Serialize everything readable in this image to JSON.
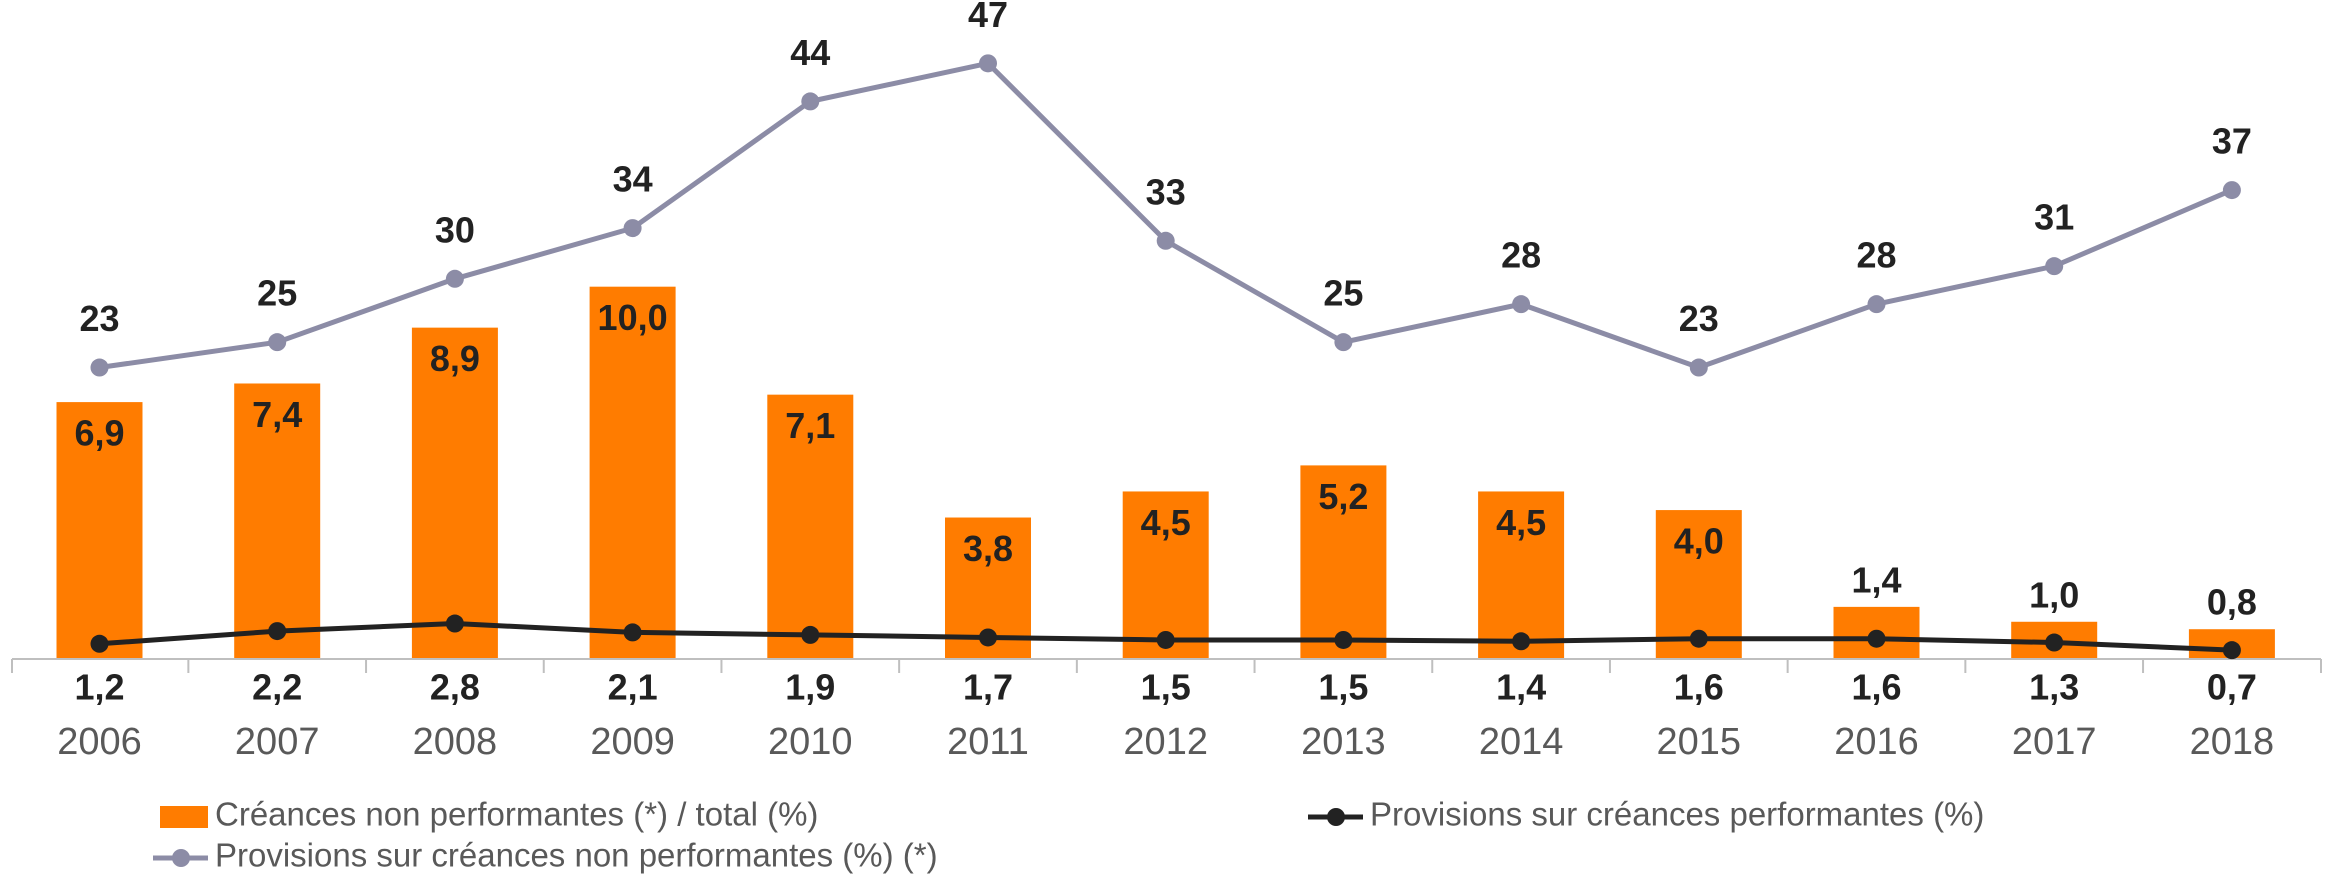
{
  "chart_data": {
    "type": "combo",
    "categories": [
      "2006",
      "2007",
      "2008",
      "2009",
      "2010",
      "2011",
      "2012",
      "2013",
      "2014",
      "2015",
      "2016",
      "2017",
      "2018"
    ],
    "ylim": [
      0,
      17.7
    ],
    "y2lim": [
      0,
      52
    ],
    "series": [
      {
        "name": "Créances non performantes (*) / total (%)",
        "type": "bar",
        "color": "#ff7c00",
        "values": [
          6.9,
          7.4,
          8.9,
          10.0,
          7.1,
          3.8,
          4.5,
          5.2,
          4.5,
          4.0,
          1.4,
          1.0,
          0.8
        ],
        "value_labels": [
          "6,9",
          "7,4",
          "8,9",
          "10,0",
          "7,1",
          "3,8",
          "4,5",
          "5,2",
          "4,5",
          "4,0",
          "1,4",
          "1,0",
          "0,8"
        ]
      },
      {
        "name": "Provisions sur créances performantes (%)",
        "type": "line",
        "axis": "y2",
        "color": "#222222",
        "values": [
          1.2,
          2.2,
          2.8,
          2.1,
          1.9,
          1.7,
          1.5,
          1.5,
          1.4,
          1.6,
          1.6,
          1.3,
          0.7
        ],
        "value_labels": [
          "1,2",
          "2,2",
          "2,8",
          "2,1",
          "1,9",
          "1,7",
          "1,5",
          "1,5",
          "1,4",
          "1,6",
          "1,6",
          "1,3",
          "0,7"
        ]
      },
      {
        "name": "Provisions sur créances non performantes (%) (*)",
        "type": "line",
        "axis": "y2",
        "color": "#8c8ca6",
        "values": [
          23,
          25,
          30,
          34,
          44,
          47,
          33,
          25,
          28,
          23,
          28,
          31,
          37
        ]
      }
    ]
  }
}
